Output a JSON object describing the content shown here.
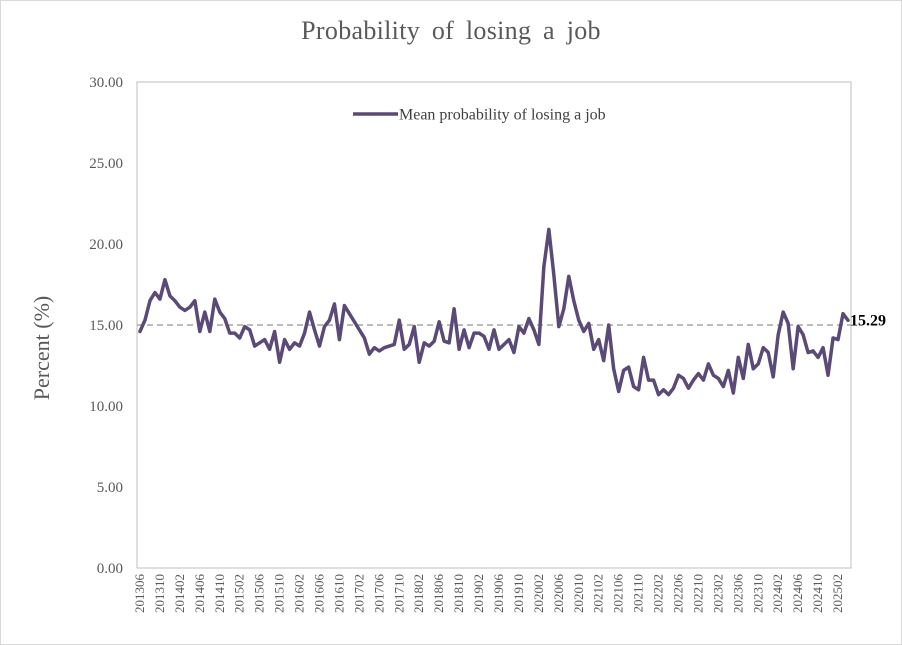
{
  "chart_data": {
    "type": "line",
    "title": "Probability  of losing  a job",
    "xlabel": "",
    "ylabel": "Percent (%)",
    "ylim": [
      0,
      30
    ],
    "y_ticks": [
      "0.00",
      "5.00",
      "10.00",
      "15.00",
      "20.00",
      "25.00",
      "30.00"
    ],
    "x_tick_labels": [
      "201306",
      "201310",
      "201402",
      "201406",
      "201410",
      "201502",
      "201506",
      "201510",
      "201602",
      "201606",
      "201610",
      "201702",
      "201706",
      "201710",
      "201802",
      "201806",
      "201810",
      "201902",
      "201906",
      "201910",
      "202002",
      "202006",
      "202010",
      "202102",
      "202106",
      "202110",
      "202202",
      "202206",
      "202210",
      "202302",
      "202306",
      "202310",
      "202402",
      "202406",
      "202410",
      "202502"
    ],
    "series": [
      {
        "name": "Mean probability of losing a job",
        "color": "#5b4a78",
        "x": [
          "201306",
          "201307",
          "201308",
          "201309",
          "201310",
          "201311",
          "201312",
          "201401",
          "201402",
          "201403",
          "201404",
          "201405",
          "201406",
          "201407",
          "201408",
          "201409",
          "201410",
          "201411",
          "201412",
          "201501",
          "201502",
          "201503",
          "201504",
          "201505",
          "201506",
          "201507",
          "201508",
          "201509",
          "201510",
          "201511",
          "201512",
          "201601",
          "201602",
          "201603",
          "201604",
          "201605",
          "201606",
          "201607",
          "201608",
          "201609",
          "201610",
          "201611",
          "201612",
          "201701",
          "201702",
          "201703",
          "201704",
          "201705",
          "201706",
          "201707",
          "201708",
          "201709",
          "201710",
          "201711",
          "201712",
          "201801",
          "201802",
          "201803",
          "201804",
          "201805",
          "201806",
          "201807",
          "201808",
          "201809",
          "201810",
          "201811",
          "201812",
          "201901",
          "201902",
          "201903",
          "201904",
          "201905",
          "201906",
          "201907",
          "201908",
          "201909",
          "201910",
          "201911",
          "201912",
          "202001",
          "202002",
          "202003",
          "202004",
          "202005",
          "202006",
          "202007",
          "202008",
          "202009",
          "202010",
          "202011",
          "202012",
          "202101",
          "202102",
          "202103",
          "202104",
          "202105",
          "202106",
          "202107",
          "202108",
          "202109",
          "202110",
          "202111",
          "202112",
          "202201",
          "202202",
          "202203",
          "202204",
          "202205",
          "202206",
          "202207",
          "202208",
          "202209",
          "202210",
          "202211",
          "202212",
          "202301",
          "202302",
          "202303",
          "202304",
          "202305",
          "202306",
          "202307",
          "202308",
          "202309",
          "202310",
          "202311",
          "202312",
          "202401",
          "202402",
          "202403",
          "202404",
          "202405",
          "202406",
          "202407",
          "202408",
          "202409",
          "202410",
          "202411",
          "202412",
          "202501",
          "202502",
          "202503",
          "202504"
        ],
        "values": [
          14.6,
          15.3,
          16.5,
          17.0,
          16.6,
          17.8,
          16.8,
          16.5,
          16.1,
          15.9,
          16.1,
          16.5,
          14.6,
          15.8,
          14.6,
          16.6,
          15.8,
          15.4,
          14.5,
          14.5,
          14.2,
          14.9,
          14.7,
          13.7,
          13.9,
          14.1,
          13.5,
          14.6,
          12.7,
          14.1,
          13.5,
          13.9,
          13.7,
          14.5,
          15.8,
          14.7,
          13.7,
          14.9,
          15.3,
          16.3,
          14.1,
          16.2,
          15.7,
          15.2,
          14.7,
          14.2,
          13.2,
          13.6,
          13.4,
          13.6,
          13.7,
          13.8,
          15.3,
          13.5,
          13.8,
          14.9,
          12.7,
          13.9,
          13.7,
          14.0,
          15.2,
          14.0,
          13.9,
          16.0,
          13.5,
          14.7,
          13.6,
          14.5,
          14.5,
          14.3,
          13.5,
          14.7,
          13.5,
          13.8,
          14.1,
          13.3,
          14.9,
          14.5,
          15.4,
          14.7,
          13.8,
          18.6,
          20.9,
          18.1,
          14.9,
          16.0,
          18.0,
          16.5,
          15.3,
          14.6,
          15.1,
          13.5,
          14.1,
          12.8,
          15.0,
          12.3,
          10.9,
          12.2,
          12.4,
          11.2,
          11.0,
          13.0,
          11.6,
          11.6,
          10.7,
          11.0,
          10.7,
          11.1,
          11.9,
          11.7,
          11.1,
          11.6,
          12.0,
          11.6,
          12.6,
          11.9,
          11.7,
          11.2,
          12.2,
          10.8,
          13.0,
          11.7,
          13.8,
          12.3,
          12.6,
          13.6,
          13.3,
          11.8,
          14.4,
          15.8,
          15.1,
          12.3,
          14.9,
          14.4,
          13.3,
          13.4,
          13.0,
          13.6,
          11.9,
          14.2,
          14.1,
          15.7,
          15.29
        ]
      }
    ],
    "reference_line": {
      "value": 15.0,
      "style": "dashed",
      "color": "#a6a6a6"
    },
    "end_label": "15.29",
    "grid": false,
    "legend_position": "top-center"
  }
}
